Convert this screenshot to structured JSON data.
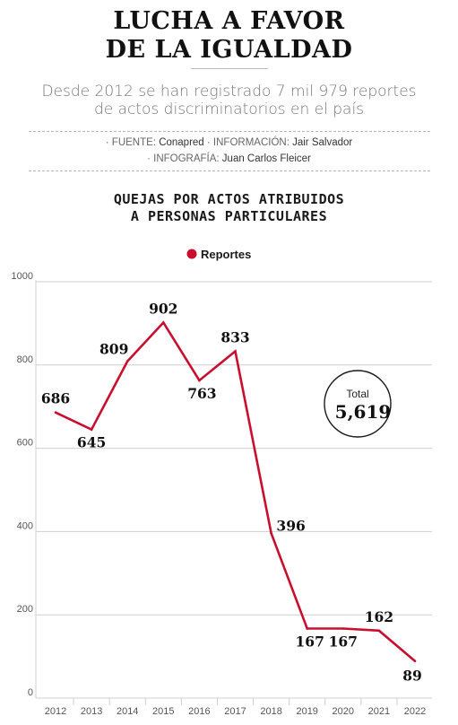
{
  "header": {
    "headline_line1": "LUCHA A FAVOR",
    "headline_line2": "DE LA IGUALDAD",
    "subtitle_line1": "Desde 2012 se han registrado 7 mil 979 reportes",
    "subtitle_line2": "de actos discriminatorios en el país"
  },
  "credits": {
    "line1": [
      {
        "key": "· FUENTE:",
        "value": " Conapred "
      },
      {
        "key": "· INFORMACIÓN:",
        "value": " Jair Salvador"
      }
    ],
    "line2": [
      {
        "key": "· INFOGRAFÍA:",
        "value": " Juan Carlos Fleicer"
      }
    ]
  },
  "chart_data": {
    "type": "line",
    "title_line1": "QUEJAS POR ACTOS ATRIBUIDOS",
    "title_line2": "A PERSONAS PARTICULARES",
    "x": [
      "2012",
      "2013",
      "2014",
      "2015",
      "2016",
      "2017",
      "2018",
      "2019",
      "2020",
      "2021",
      "2022"
    ],
    "series": [
      {
        "name": "Reportes",
        "values": [
          686,
          645,
          809,
          902,
          763,
          833,
          396,
          167,
          167,
          162,
          89
        ],
        "color": "#c8102e"
      }
    ],
    "data_labels": [
      "686",
      "645",
      "809",
      "902",
      "763",
      "833",
      "396",
      "167",
      "167",
      "162",
      "89"
    ],
    "yticks": [
      "0",
      "200",
      "400",
      "600",
      "800",
      "1000"
    ],
    "ylim": [
      0,
      1000
    ],
    "grid": true,
    "legend_position": "top-center",
    "total": {
      "label": "Total",
      "value": "5,619"
    }
  }
}
